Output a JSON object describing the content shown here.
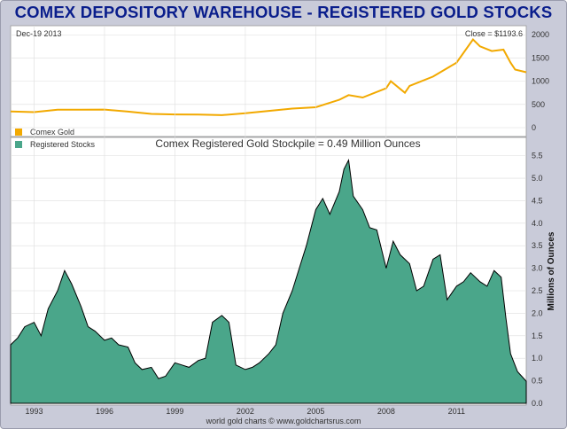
{
  "title": "COMEX DEPOSITORY WAREHOUSE - REGISTERED GOLD STOCKS",
  "colors": {
    "background": "#c9cbd9",
    "title": "#0a1e8c",
    "gold_line": "#f2a900",
    "stocks_fill": "#4aa68a",
    "stocks_line": "#000000",
    "grid": "#dddddd"
  },
  "chart_data": [
    {
      "type": "line",
      "panel": "top",
      "date_label": "Dec-19  2013",
      "close_label": "Close = $1193.6",
      "legend": [
        {
          "name": "Comex Gold",
          "color": "#f2a900"
        }
      ],
      "yticks": [
        "0",
        "500",
        "1000",
        "1500",
        "2000"
      ],
      "ylim": [
        0,
        2100
      ],
      "xlim": [
        1992.0,
        2013.97
      ],
      "series": [
        {
          "name": "Comex Gold",
          "x": [
            1992.0,
            1993.0,
            1994.0,
            1995.0,
            1996.0,
            1997.0,
            1998.0,
            1999.0,
            2000.0,
            2001.0,
            2002.0,
            2003.0,
            2004.0,
            2005.0,
            2006.0,
            2006.4,
            2007.0,
            2008.0,
            2008.2,
            2008.8,
            2009.0,
            2010.0,
            2011.0,
            2011.7,
            2012.0,
            2012.5,
            2013.0,
            2013.3,
            2013.5,
            2013.97
          ],
          "values": [
            350,
            335,
            385,
            385,
            390,
            345,
            295,
            285,
            280,
            270,
            310,
            360,
            410,
            440,
            600,
            700,
            650,
            850,
            1000,
            750,
            900,
            1100,
            1400,
            1900,
            1750,
            1650,
            1680,
            1400,
            1250,
            1193.6
          ]
        }
      ]
    },
    {
      "type": "area",
      "panel": "bottom",
      "legend": [
        {
          "name": "Registered Stocks",
          "color": "#4aa68a"
        }
      ],
      "annotation": "Comex Registered Gold Stockpile = 0.49 Million Ounces",
      "ylabel": "Millions of Ounces",
      "yticks": [
        "0.0",
        "0.5",
        "1.0",
        "1.5",
        "2.0",
        "2.5",
        "3.0",
        "3.5",
        "4.0",
        "4.5",
        "5.0",
        "5.5"
      ],
      "ylim": [
        0,
        5.65
      ],
      "xlim": [
        1992.0,
        2013.97
      ],
      "xticks": [
        "1993",
        "1996",
        "1999",
        "2002",
        "2005",
        "2008",
        "2011"
      ],
      "series": [
        {
          "name": "Registered Stocks",
          "x": [
            1992.0,
            1992.3,
            1992.6,
            1993.0,
            1993.3,
            1993.6,
            1994.0,
            1994.3,
            1994.6,
            1995.0,
            1995.3,
            1995.6,
            1996.0,
            1996.3,
            1996.6,
            1997.0,
            1997.3,
            1997.6,
            1998.0,
            1998.3,
            1998.6,
            1999.0,
            1999.3,
            1999.6,
            2000.0,
            2000.3,
            2000.6,
            2001.0,
            2001.3,
            2001.6,
            2002.0,
            2002.3,
            2002.6,
            2003.0,
            2003.3,
            2003.6,
            2004.0,
            2004.3,
            2004.6,
            2005.0,
            2005.3,
            2005.6,
            2006.0,
            2006.2,
            2006.4,
            2006.6,
            2007.0,
            2007.3,
            2007.6,
            2008.0,
            2008.3,
            2008.6,
            2009.0,
            2009.3,
            2009.6,
            2010.0,
            2010.3,
            2010.6,
            2011.0,
            2011.3,
            2011.6,
            2012.0,
            2012.3,
            2012.6,
            2012.9,
            2013.1,
            2013.3,
            2013.6,
            2013.97
          ],
          "values": [
            1.3,
            1.45,
            1.7,
            1.8,
            1.5,
            2.1,
            2.5,
            2.95,
            2.65,
            2.15,
            1.7,
            1.6,
            1.4,
            1.45,
            1.3,
            1.25,
            0.9,
            0.75,
            0.8,
            0.55,
            0.6,
            0.9,
            0.85,
            0.8,
            0.95,
            1.0,
            1.8,
            1.95,
            1.8,
            0.85,
            0.75,
            0.8,
            0.9,
            1.1,
            1.3,
            2.0,
            2.5,
            3.0,
            3.5,
            4.3,
            4.55,
            4.2,
            4.7,
            5.2,
            5.4,
            4.6,
            4.3,
            3.9,
            3.85,
            3.0,
            3.6,
            3.3,
            3.1,
            2.5,
            2.6,
            3.2,
            3.3,
            2.3,
            2.6,
            2.7,
            2.9,
            2.7,
            2.6,
            2.95,
            2.8,
            1.9,
            1.1,
            0.7,
            0.49
          ]
        }
      ]
    }
  ],
  "footer": "world gold charts © www.goldchartsrus.com"
}
